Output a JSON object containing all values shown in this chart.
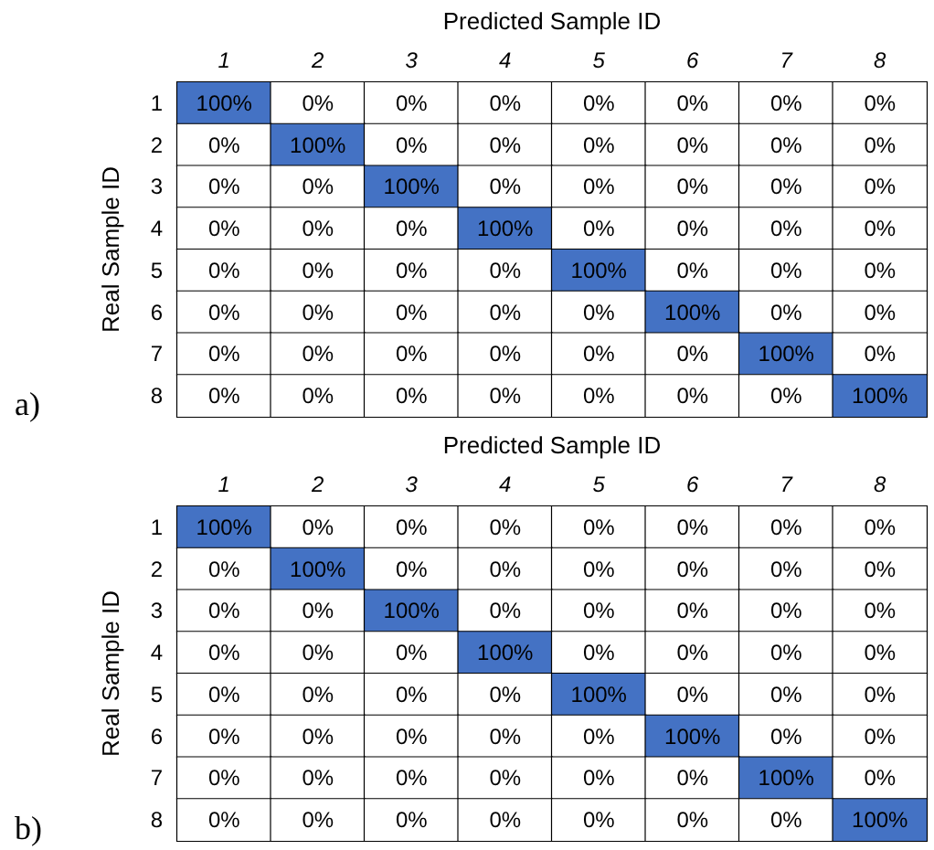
{
  "chart_data": [
    {
      "type": "heatmap",
      "xlabel": "Predicted Sample ID",
      "ylabel": "Real Sample ID",
      "color": "#4472c4",
      "annotations": [
        "a)"
      ],
      "categories": [
        "1",
        "2",
        "3",
        "4",
        "5",
        "6",
        "7",
        "8"
      ],
      "y_categories": [
        "1",
        "2",
        "3",
        "4",
        "5",
        "6",
        "7",
        "8"
      ],
      "cells": [
        [
          100,
          0,
          0,
          0,
          0,
          0,
          0,
          0
        ],
        [
          0,
          100,
          0,
          0,
          0,
          0,
          0,
          0
        ],
        [
          0,
          0,
          100,
          0,
          0,
          0,
          0,
          0
        ],
        [
          0,
          0,
          0,
          100,
          0,
          0,
          0,
          0
        ],
        [
          0,
          0,
          0,
          0,
          100,
          0,
          0,
          0
        ],
        [
          0,
          0,
          0,
          0,
          0,
          100,
          0,
          0
        ],
        [
          0,
          0,
          0,
          0,
          0,
          0,
          100,
          0
        ],
        [
          0,
          0,
          0,
          0,
          0,
          0,
          0,
          100
        ]
      ],
      "cell_labels": [
        [
          "100%",
          "0%",
          "0%",
          "0%",
          "0%",
          "0%",
          "0%",
          "0%"
        ],
        [
          "0%",
          "100%",
          "0%",
          "0%",
          "0%",
          "0%",
          "0%",
          "0%"
        ],
        [
          "0%",
          "0%",
          "100%",
          "0%",
          "0%",
          "0%",
          "0%",
          "0%"
        ],
        [
          "0%",
          "0%",
          "0%",
          "100%",
          "0%",
          "0%",
          "0%",
          "0%"
        ],
        [
          "0%",
          "0%",
          "0%",
          "0%",
          "100%",
          "0%",
          "0%",
          "0%"
        ],
        [
          "0%",
          "0%",
          "0%",
          "0%",
          "0%",
          "100%",
          "0%",
          "0%"
        ],
        [
          "0%",
          "0%",
          "0%",
          "0%",
          "0%",
          "0%",
          "100%",
          "0%"
        ],
        [
          "0%",
          "0%",
          "0%",
          "0%",
          "0%",
          "0%",
          "0%",
          "100%"
        ]
      ]
    },
    {
      "type": "heatmap",
      "xlabel": "Predicted Sample ID",
      "ylabel": "Real Sample ID",
      "color": "#4472c4",
      "annotations": [
        "b)"
      ],
      "categories": [
        "1",
        "2",
        "3",
        "4",
        "5",
        "6",
        "7",
        "8"
      ],
      "y_categories": [
        "1",
        "2",
        "3",
        "4",
        "5",
        "6",
        "7",
        "8"
      ],
      "cells": [
        [
          100,
          0,
          0,
          0,
          0,
          0,
          0,
          0
        ],
        [
          0,
          100,
          0,
          0,
          0,
          0,
          0,
          0
        ],
        [
          0,
          0,
          100,
          0,
          0,
          0,
          0,
          0
        ],
        [
          0,
          0,
          0,
          100,
          0,
          0,
          0,
          0
        ],
        [
          0,
          0,
          0,
          0,
          100,
          0,
          0,
          0
        ],
        [
          0,
          0,
          0,
          0,
          0,
          100,
          0,
          0
        ],
        [
          0,
          0,
          0,
          0,
          0,
          0,
          100,
          0
        ],
        [
          0,
          0,
          0,
          0,
          0,
          0,
          0,
          100
        ]
      ],
      "cell_labels": [
        [
          "100%",
          "0%",
          "0%",
          "0%",
          "0%",
          "0%",
          "0%",
          "0%"
        ],
        [
          "0%",
          "100%",
          "0%",
          "0%",
          "0%",
          "0%",
          "0%",
          "0%"
        ],
        [
          "0%",
          "0%",
          "100%",
          "0%",
          "0%",
          "0%",
          "0%",
          "0%"
        ],
        [
          "0%",
          "0%",
          "0%",
          "100%",
          "0%",
          "0%",
          "0%",
          "0%"
        ],
        [
          "0%",
          "0%",
          "0%",
          "0%",
          "100%",
          "0%",
          "0%",
          "0%"
        ],
        [
          "0%",
          "0%",
          "0%",
          "0%",
          "0%",
          "100%",
          "0%",
          "0%"
        ],
        [
          "0%",
          "0%",
          "0%",
          "0%",
          "0%",
          "0%",
          "100%",
          "0%"
        ],
        [
          "0%",
          "0%",
          "0%",
          "0%",
          "0%",
          "0%",
          "0%",
          "100%"
        ]
      ]
    }
  ]
}
